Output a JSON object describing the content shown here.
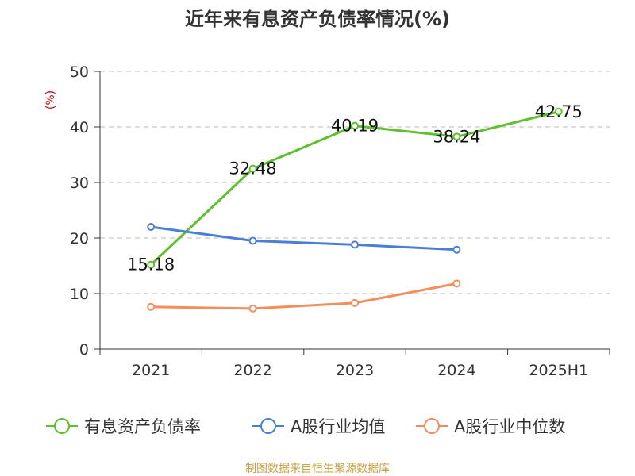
{
  "chart_data": {
    "type": "line",
    "title": "近年来有息资产负债率情况(%)",
    "ylabel": "(%)",
    "xlabel": "",
    "categories": [
      "2021",
      "2022",
      "2023",
      "2024",
      "2025H1"
    ],
    "ylim": [
      0,
      50
    ],
    "yticks": [
      0,
      10,
      20,
      30,
      40,
      50
    ],
    "grid": true,
    "legend_position": "bottom",
    "series": [
      {
        "name": "有息资产负债率",
        "color": "#5cc12a",
        "values": [
          15.18,
          32.48,
          40.19,
          38.24,
          42.75
        ],
        "labels": [
          "15.18",
          "32.48",
          "40.19",
          "38.24",
          "42.75"
        ]
      },
      {
        "name": "A股行业均值",
        "color": "#4a7fd8",
        "values": [
          22.0,
          19.5,
          18.8,
          17.9,
          null
        ]
      },
      {
        "name": "A股行业中位数",
        "color": "#f58d5a",
        "values": [
          7.6,
          7.3,
          8.3,
          11.8,
          null
        ]
      }
    ]
  },
  "source": "制图数据来自恒生聚源数据库",
  "colors": {
    "axis": "#333333",
    "grid": "#bbbbbb",
    "ylabel": "#cc0000",
    "source": "#c8a040"
  }
}
